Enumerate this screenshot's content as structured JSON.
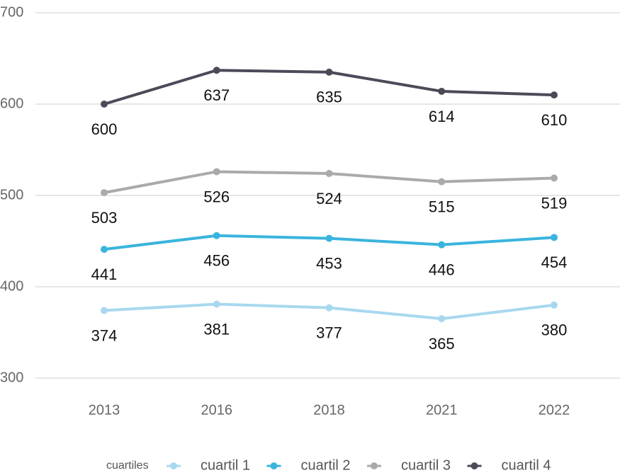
{
  "chart_data": {
    "type": "line",
    "categories": [
      "2013",
      "2016",
      "2018",
      "2021",
      "2022"
    ],
    "series": [
      {
        "name": "cuartil 1",
        "color": "#a8d8ef",
        "values": [
          374,
          381,
          377,
          365,
          380
        ]
      },
      {
        "name": "cuartil 2",
        "color": "#3ab4de",
        "values": [
          441,
          456,
          453,
          446,
          454
        ]
      },
      {
        "name": "cuartil 3",
        "color": "#aaaaaa",
        "values": [
          503,
          526,
          524,
          515,
          519
        ]
      },
      {
        "name": "cuartil 4",
        "color": "#4a4b57",
        "values": [
          600,
          637,
          635,
          614,
          610
        ]
      }
    ],
    "ylim": [
      300,
      700
    ],
    "yticks": [
      300,
      400,
      500,
      600,
      700
    ],
    "grid": true,
    "legend_title": "cuartiles",
    "legend": "bottom"
  }
}
